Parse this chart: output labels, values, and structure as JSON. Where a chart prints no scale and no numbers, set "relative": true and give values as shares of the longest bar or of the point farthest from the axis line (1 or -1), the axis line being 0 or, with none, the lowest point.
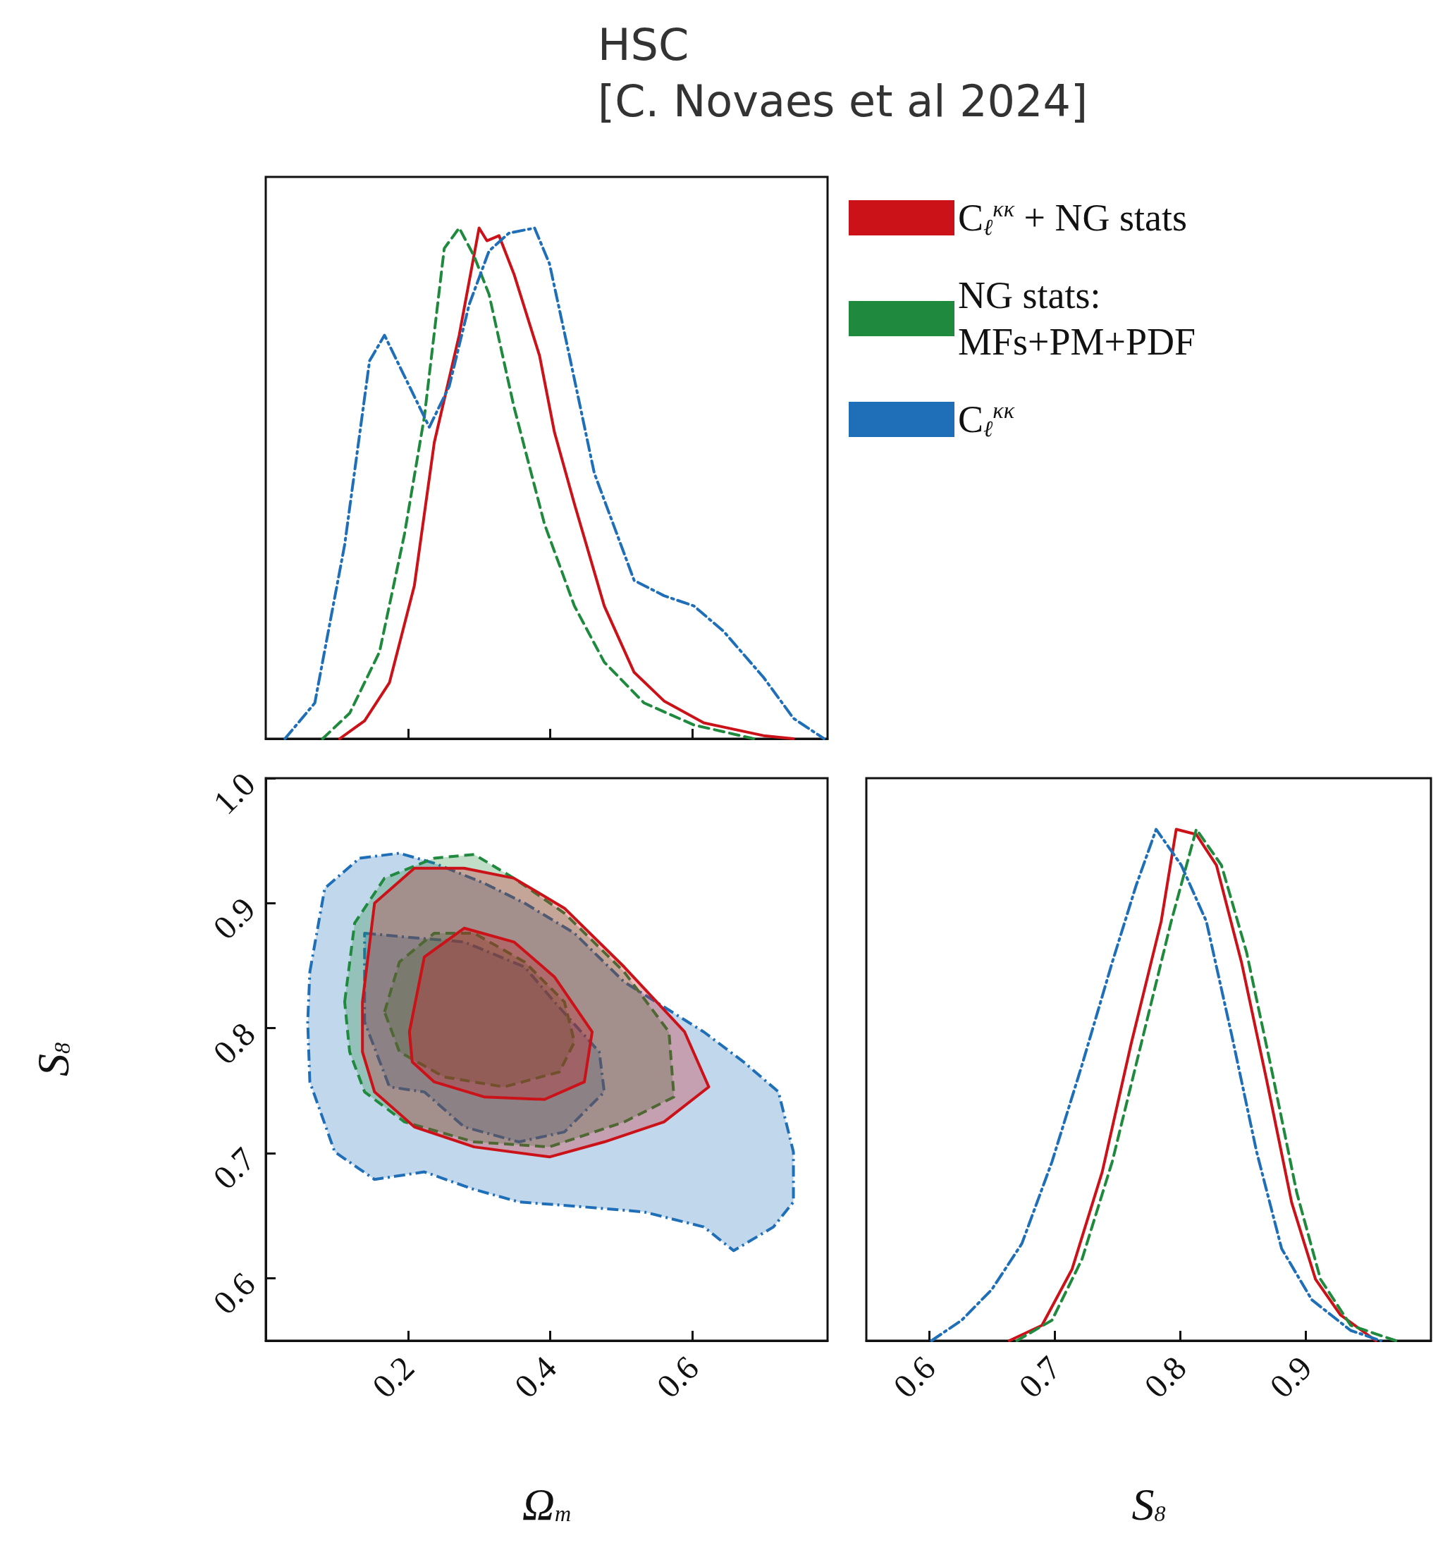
{
  "chart_data": [
    {
      "type": "line",
      "title": "HSC\n[C. Novaes et al 2024]",
      "relative": true,
      "xlim": [
        0,
        0.79
      ],
      "xticks": [
        0.2,
        0.4,
        0.6
      ],
      "tick_labels": false,
      "grid": false,
      "legend": "right",
      "marker": "none",
      "series": [
        {
          "name": "C$_{ℓ}$$^{κκ}$ + NG stats",
          "color": "#cc1219",
          "line_style": "solid",
          "x": [
            0.104,
            0.139,
            0.174,
            0.209,
            0.237,
            0.272,
            0.3,
            0.311,
            0.328,
            0.349,
            0.385,
            0.406,
            0.434,
            0.476,
            0.518,
            0.56,
            0.616,
            0.7,
            0.742
          ],
          "values": [
            0,
            0.035,
            0.11,
            0.3,
            0.58,
            0.79,
            1,
            0.975,
            0.985,
            0.91,
            0.75,
            0.6,
            0.46,
            0.26,
            0.13,
            0.074,
            0.031,
            0.006,
            0
          ]
        },
        {
          "name": "NG stats:\nMFs+PM+PDF",
          "color": "#1f8a3d",
          "line_style": "dashed",
          "x": [
            0.08,
            0.118,
            0.16,
            0.195,
            0.223,
            0.251,
            0.272,
            0.293,
            0.314,
            0.349,
            0.392,
            0.434,
            0.476,
            0.532,
            0.602,
            0.686
          ],
          "values": [
            0,
            0.05,
            0.17,
            0.4,
            0.63,
            0.96,
            1,
            0.945,
            0.87,
            0.65,
            0.42,
            0.26,
            0.15,
            0.07,
            0.027,
            0
          ]
        },
        {
          "name": "C$_{ℓ}$$^{κκ}$",
          "color": "#1f6fb8",
          "line_style": "dashdot",
          "x": [
            0.027,
            0.069,
            0.111,
            0.146,
            0.167,
            0.195,
            0.23,
            0.258,
            0.286,
            0.314,
            0.342,
            0.378,
            0.399,
            0.427,
            0.462,
            0.518,
            0.56,
            0.602,
            0.644,
            0.7,
            0.742,
            0.785
          ],
          "values": [
            0,
            0.07,
            0.38,
            0.74,
            0.79,
            0.71,
            0.61,
            0.69,
            0.85,
            0.955,
            0.99,
            1,
            0.93,
            0.75,
            0.52,
            0.31,
            0.28,
            0.26,
            0.21,
            0.12,
            0.04,
            0
          ]
        }
      ]
    },
    {
      "type": "area",
      "xlabel": "Ω$_{m}$",
      "ylabel": "S$_{8}$",
      "xlim": [
        0,
        0.79
      ],
      "ylim": [
        0.55,
        1.0
      ],
      "xticks": [
        0.2,
        0.4,
        0.6
      ],
      "yticks": [
        0.6,
        0.7,
        0.8,
        0.9,
        {
          "value": 1.0,
          "label": "1.0"
        }
      ],
      "grid": false,
      "series": [
        {
          "color": "#1f6fb8",
          "line_style": "dashdot",
          "x": [
            0.062,
            0.083,
            0.132,
            0.188,
            0.237,
            0.307,
            0.364,
            0.434,
            0.504,
            0.56,
            0.616,
            0.672,
            0.721,
            0.742,
            0.742,
            0.714,
            0.658,
            0.616,
            0.532,
            0.448,
            0.356,
            0.293,
            0.223,
            0.153,
            0.097,
            0.062,
            0.059
          ],
          "values": [
            0.845,
            0.912,
            0.936,
            0.94,
            0.932,
            0.916,
            0.9,
            0.876,
            0.837,
            0.817,
            0.797,
            0.773,
            0.749,
            0.701,
            0.661,
            0.641,
            0.622,
            0.641,
            0.653,
            0.657,
            0.661,
            0.671,
            0.685,
            0.679,
            0.701,
            0.757,
            0.805
          ]
        },
        {
          "color": "#1f6fb8",
          "line_style": "dashdot",
          "x": [
            0.139,
            0.195,
            0.279,
            0.364,
            0.406,
            0.469,
            0.476,
            0.42,
            0.356,
            0.279,
            0.223,
            0.174,
            0.139
          ],
          "values": [
            0.876,
            0.873,
            0.869,
            0.849,
            0.821,
            0.781,
            0.749,
            0.717,
            0.709,
            0.721,
            0.749,
            0.753,
            0.805
          ]
        },
        {
          "color": "#1f8a3d",
          "line_style": "dashed",
          "x": [
            0.111,
            0.125,
            0.167,
            0.237,
            0.293,
            0.349,
            0.42,
            0.504,
            0.567,
            0.574,
            0.504,
            0.399,
            0.293,
            0.195,
            0.139,
            0.118
          ],
          "values": [
            0.821,
            0.884,
            0.92,
            0.936,
            0.939,
            0.92,
            0.892,
            0.845,
            0.797,
            0.745,
            0.725,
            0.705,
            0.709,
            0.725,
            0.749,
            0.781
          ]
        },
        {
          "color": "#1f8a3d",
          "line_style": "dashed",
          "x": [
            0.167,
            0.188,
            0.237,
            0.293,
            0.364,
            0.42,
            0.434,
            0.413,
            0.335,
            0.251,
            0.188
          ],
          "values": [
            0.813,
            0.853,
            0.876,
            0.876,
            0.853,
            0.821,
            0.789,
            0.765,
            0.753,
            0.761,
            0.781
          ]
        },
        {
          "color": "#cc1219",
          "line_style": "solid",
          "x": [
            0.136,
            0.153,
            0.209,
            0.279,
            0.349,
            0.42,
            0.504,
            0.589,
            0.623,
            0.56,
            0.476,
            0.399,
            0.293,
            0.209,
            0.153,
            0.136
          ],
          "values": [
            0.821,
            0.9,
            0.928,
            0.928,
            0.92,
            0.896,
            0.849,
            0.797,
            0.753,
            0.725,
            0.709,
            0.697,
            0.705,
            0.721,
            0.749,
            0.781
          ]
        },
        {
          "color": "#cc1219",
          "line_style": "solid",
          "x": [
            0.202,
            0.223,
            0.279,
            0.349,
            0.406,
            0.459,
            0.448,
            0.392,
            0.307,
            0.237,
            0.206
          ],
          "values": [
            0.797,
            0.857,
            0.88,
            0.869,
            0.841,
            0.797,
            0.757,
            0.743,
            0.745,
            0.757,
            0.773
          ]
        }
      ]
    },
    {
      "type": "line",
      "xlabel": "S$_{8}$",
      "relative": true,
      "xlim": [
        0.55,
        1.0
      ],
      "xticks": [
        0.6,
        0.7,
        0.8,
        0.9
      ],
      "tick_labels": "x",
      "grid": false,
      "marker": "none",
      "series": [
        {
          "color": "#cc1219",
          "line_style": "solid",
          "x": [
            0.664,
            0.69,
            0.714,
            0.738,
            0.761,
            0.785,
            0.797,
            0.813,
            0.829,
            0.849,
            0.869,
            0.889,
            0.908,
            0.928,
            0.956
          ],
          "values": [
            0,
            0.03,
            0.14,
            0.33,
            0.58,
            0.82,
            1,
            0.99,
            0.93,
            0.74,
            0.51,
            0.27,
            0.12,
            0.05,
            0
          ]
        },
        {
          "color": "#1f8a3d",
          "line_style": "dashed",
          "x": [
            0.67,
            0.698,
            0.722,
            0.746,
            0.769,
            0.793,
            0.813,
            0.833,
            0.853,
            0.873,
            0.893,
            0.912,
            0.936,
            0.972
          ],
          "values": [
            0,
            0.04,
            0.16,
            0.35,
            0.58,
            0.82,
            1,
            0.93,
            0.76,
            0.53,
            0.29,
            0.12,
            0.03,
            0
          ]
        },
        {
          "color": "#1f6fb8",
          "line_style": "dashdot",
          "x": [
            0.602,
            0.626,
            0.65,
            0.674,
            0.698,
            0.722,
            0.746,
            0.765,
            0.781,
            0.801,
            0.821,
            0.841,
            0.861,
            0.881,
            0.905,
            0.936,
            0.96
          ],
          "values": [
            0,
            0.04,
            0.1,
            0.19,
            0.35,
            0.54,
            0.74,
            0.89,
            1,
            0.93,
            0.82,
            0.6,
            0.37,
            0.18,
            0.08,
            0.02,
            0
          ]
        }
      ]
    }
  ]
}
